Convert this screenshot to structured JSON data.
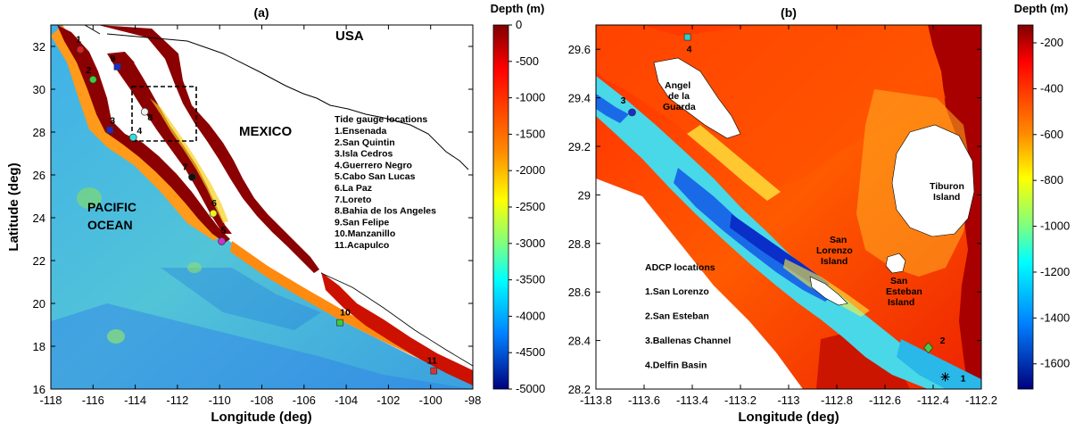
{
  "colors": {
    "land_a": "#8b0000",
    "deep_a": "#5ac8d8",
    "frame": "#000000"
  },
  "panel_a": {
    "title": "(a)",
    "xlabel": "Longitude (deg)",
    "ylabel": "Latitude (deg)",
    "xticks": [
      "-118",
      "-116",
      "-114",
      "-112",
      "-110",
      "-108",
      "-106",
      "-104",
      "-102",
      "-100",
      "-98"
    ],
    "yticks": [
      "32",
      "30",
      "28",
      "26",
      "24",
      "22",
      "20",
      "18",
      "16"
    ],
    "colorbar": {
      "label": "Depth (m)",
      "ticks": [
        "0",
        "-500",
        "-1000",
        "-1500",
        "-2000",
        "-2500",
        "-3000",
        "-3500",
        "-4000",
        "-4500",
        "-5000"
      ]
    },
    "labels": {
      "usa": "USA",
      "mexico": "MEXICO",
      "pacific1": "PACIFIC",
      "pacific2": "OCEAN"
    },
    "legend_title": "Tide gauge locations",
    "legend": [
      "1.Ensenada",
      "2.San Quintin",
      "3.Isla Cedros",
      "4.Guerrero Negro",
      "5.Cabo San Lucas",
      "6.La Paz",
      "7.Loreto",
      "8.Bahia de los Angeles",
      "9.San Felipe",
      "10.Manzanillo",
      "11.Acapulco"
    ],
    "stations": [
      {
        "id": "1",
        "lon": -116.6,
        "lat": 31.85,
        "color": "#e32020",
        "shape": "circle"
      },
      {
        "id": "2",
        "lon": -116.0,
        "lat": 30.45,
        "color": "#3ccc3c",
        "shape": "circle"
      },
      {
        "id": "3",
        "lon": -115.2,
        "lat": 28.1,
        "color": "#1a2ccc",
        "shape": "square"
      },
      {
        "id": "4",
        "lon": -114.1,
        "lat": 27.75,
        "color": "#33dddd",
        "shape": "circle"
      },
      {
        "id": "5",
        "lon": -109.9,
        "lat": 22.9,
        "color": "#cc33cc",
        "shape": "circle"
      },
      {
        "id": "6",
        "lon": -110.3,
        "lat": 24.2,
        "color": "#f0f020",
        "shape": "circle"
      },
      {
        "id": "7",
        "lon": -111.3,
        "lat": 25.9,
        "color": "#111111",
        "shape": "circle"
      },
      {
        "id": "8",
        "lon": -113.55,
        "lat": 28.95,
        "color": "#f0f0f0",
        "shape": "circle"
      },
      {
        "id": "9",
        "lon": -114.85,
        "lat": 31.05,
        "color": "#1a2ccc",
        "shape": "square"
      },
      {
        "id": "10",
        "lon": -104.3,
        "lat": 19.1,
        "color": "#3ccc3c",
        "shape": "square"
      },
      {
        "id": "11",
        "lon": -99.85,
        "lat": 16.85,
        "color": "#dd3333",
        "shape": "square"
      }
    ]
  },
  "panel_b": {
    "title": "(b)",
    "xlabel": "Longitude (deg)",
    "xticks": [
      "-113.8",
      "-113.6",
      "-113.4",
      "-113.2",
      "-113",
      "-112.8",
      "-112.6",
      "-112.4",
      "-112.2"
    ],
    "yticks": [
      "29.6",
      "29.4",
      "29.2",
      "29",
      "28.8",
      "28.6",
      "28.4",
      "28.2"
    ],
    "colorbar": {
      "label": "Depth (m)",
      "ticks": [
        "-200",
        "-400",
        "-600",
        "-800",
        "-1000",
        "-1200",
        "-1400",
        "-1600"
      ]
    },
    "islands": {
      "angel1": "Angel",
      "angel2": "de la",
      "angel3": "Guarda",
      "tiburon1": "Tiburon",
      "tiburon2": "Island",
      "lorenzo1": "San",
      "lorenzo2": "Lorenzo",
      "lorenzo3": "Island",
      "esteban1": "San",
      "esteban2": "Esteban",
      "esteban3": "Island"
    },
    "legend_title": "ADCP locations",
    "legend": [
      "1.San Lorenzo",
      "2.San Esteban",
      "3.Ballenas Channel",
      "4.Delfin Basin"
    ],
    "stations": [
      {
        "id": "1",
        "lon": -112.35,
        "lat": 28.25,
        "color": "#000000",
        "shape": "asterisk"
      },
      {
        "id": "2",
        "lon": -112.42,
        "lat": 28.37,
        "color": "#44cc44",
        "shape": "diamond"
      },
      {
        "id": "3",
        "lon": -113.65,
        "lat": 29.34,
        "color": "#1a2ccc",
        "shape": "circle"
      },
      {
        "id": "4",
        "lon": -113.42,
        "lat": 29.65,
        "color": "#33cccc",
        "shape": "square"
      }
    ]
  }
}
